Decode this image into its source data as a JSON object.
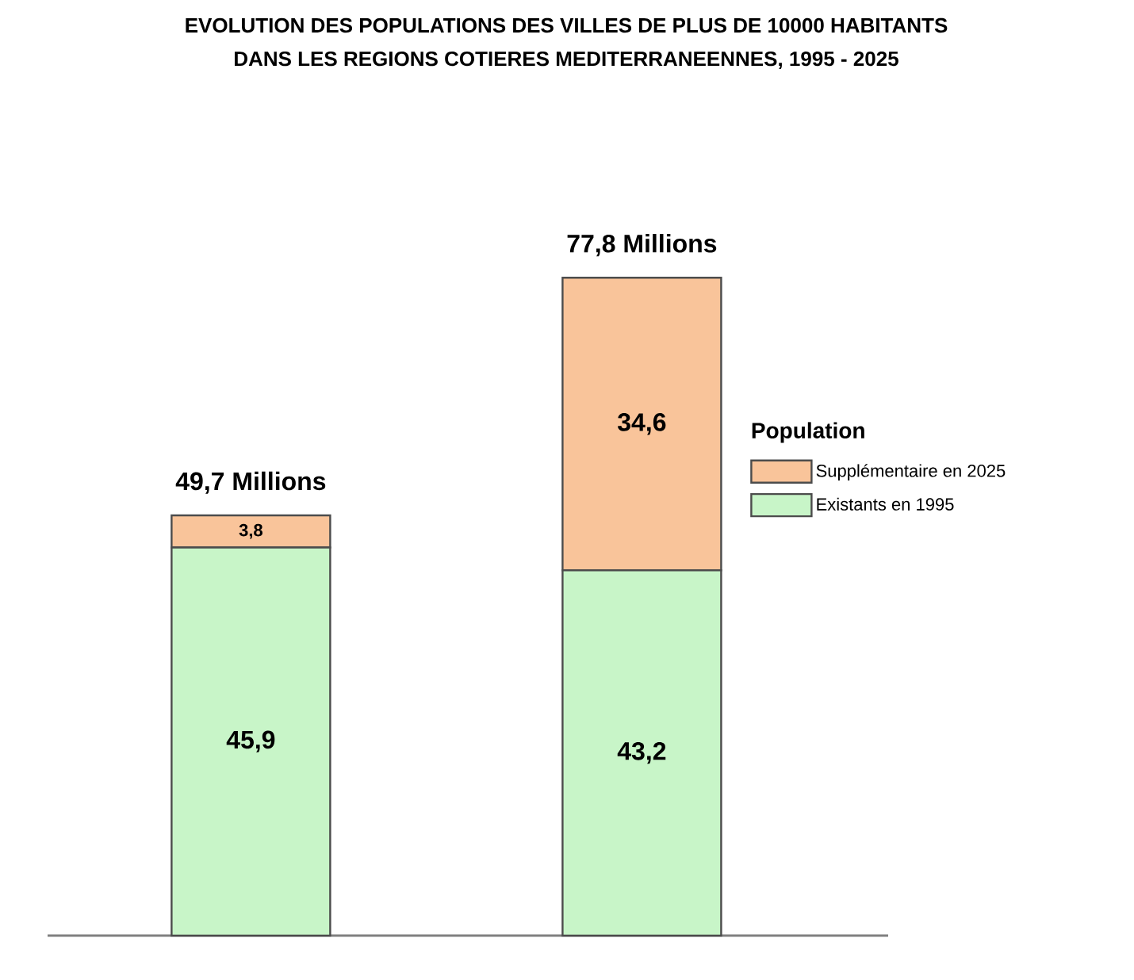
{
  "chart_data": {
    "type": "bar",
    "stacked": true,
    "title": "EVOLUTION DES POPULATIONS DES VILLES DE PLUS DE 10000 HABITANTS",
    "subtitle": "DANS LES REGIONS COTIERES MEDITERRANEENNES, 1995 - 2025",
    "categories": [
      null,
      null
    ],
    "legend": "right",
    "legend_title": "Population",
    "series": [
      {
        "name": "Existants en 1995",
        "color": "#c8f5c8",
        "values": [
          45.9,
          43.2
        ],
        "value_labels": [
          "45,9",
          "43,2"
        ]
      },
      {
        "name": "Supplémentaire en 2025",
        "color": "#f9c49a",
        "values": [
          3.8,
          34.6
        ],
        "value_labels": [
          "3,8",
          "34,6"
        ]
      }
    ],
    "totals": [
      "49,7 Millions",
      "77,8 Millions"
    ]
  }
}
